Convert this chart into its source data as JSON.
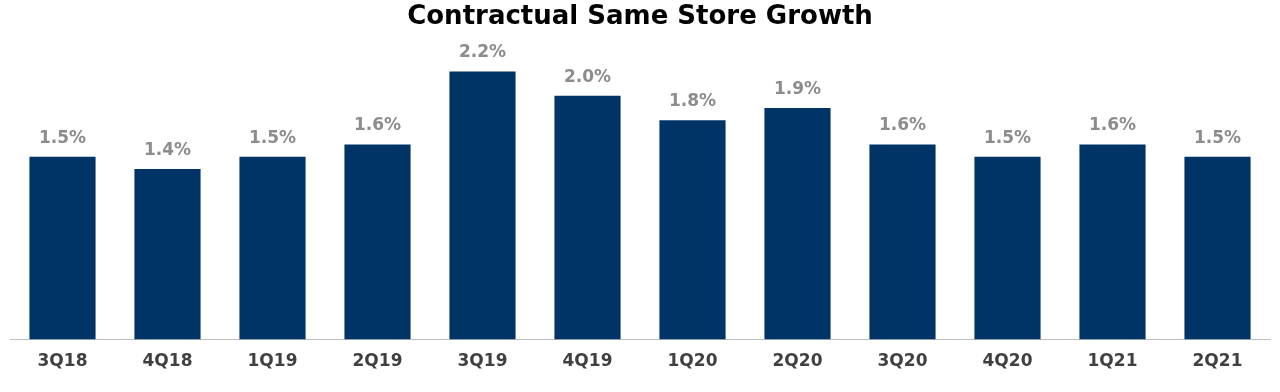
{
  "chart_data": {
    "type": "bar",
    "title": "Contractual Same Store Growth",
    "categories": [
      "3Q18",
      "4Q18",
      "1Q19",
      "2Q19",
      "3Q19",
      "4Q19",
      "1Q20",
      "2Q20",
      "3Q20",
      "4Q20",
      "1Q21",
      "2Q21"
    ],
    "values": [
      1.5,
      1.4,
      1.5,
      1.6,
      2.2,
      2.0,
      1.8,
      1.9,
      1.6,
      1.5,
      1.6,
      1.5
    ],
    "value_labels": [
      "1.5%",
      "1.4%",
      "1.5%",
      "1.6%",
      "2.2%",
      "2.0%",
      "1.8%",
      "1.9%",
      "1.6%",
      "1.5%",
      "1.6%",
      "1.5%"
    ],
    "color": "#003366",
    "grid": false,
    "legend": false,
    "tick_labels": "x"
  }
}
